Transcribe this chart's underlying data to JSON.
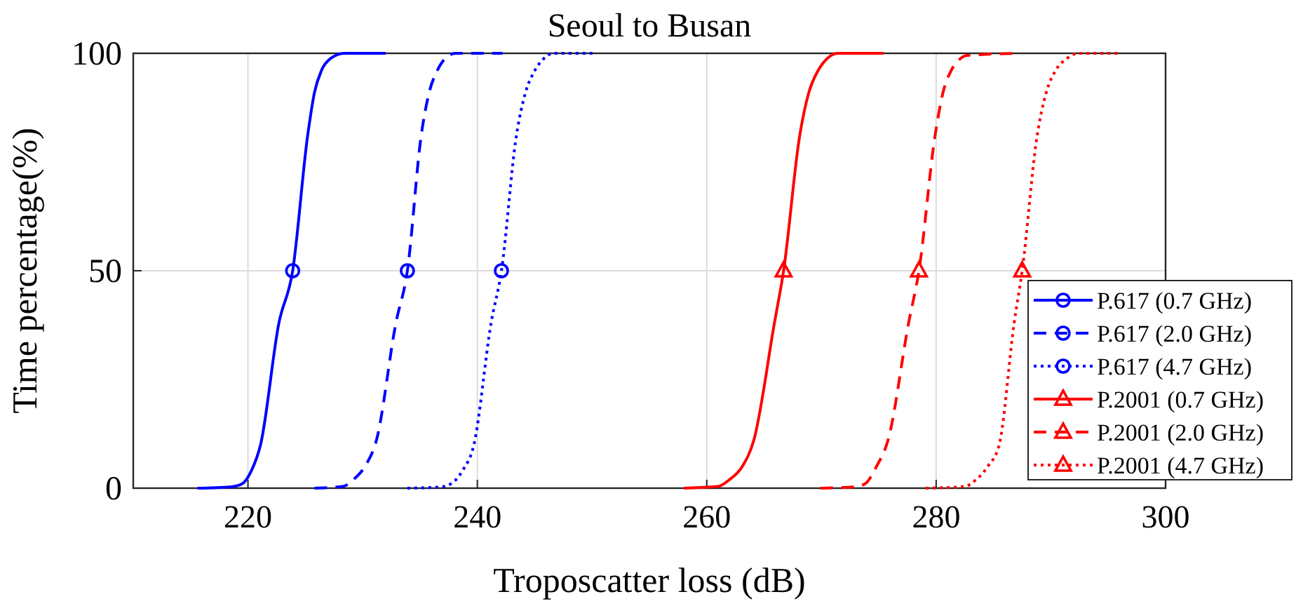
{
  "chart_data": {
    "type": "line",
    "title": "Seoul to Busan",
    "xlabel": "Troposcatter loss (dB)",
    "ylabel": "Time percentage(%)",
    "xlim": [
      210,
      300
    ],
    "xticks": [
      220,
      240,
      260,
      280,
      300
    ],
    "ylim": [
      0,
      100
    ],
    "yticks": [
      0,
      50,
      100
    ],
    "grid": true,
    "legend": "bottom right",
    "series": [
      {
        "name": "P.617 (0.7 GHz)",
        "color": "#0000ff",
        "line_style": "solid",
        "x": [
          215.6,
          218.5,
          219.5,
          220.3,
          221.1,
          222.7,
          223.9,
          225.2,
          225.8,
          226.4,
          227.2,
          228.4,
          232.0
        ],
        "values": [
          0,
          0.3,
          1,
          4,
          10,
          38,
          50,
          81,
          91,
          96,
          98.8,
          100,
          100
        ]
      },
      {
        "name": "P.617 (2.0 GHz)",
        "color": "#0000ff",
        "line_style": "dashed",
        "x": [
          225.8,
          228.3,
          229.2,
          230.2,
          231.2,
          232.9,
          233.9,
          235.1,
          235.8,
          236.5,
          237.2,
          238.1,
          242.2
        ],
        "values": [
          0,
          0.4,
          2,
          5,
          11,
          38,
          50,
          81,
          91,
          96,
          98.8,
          100,
          100
        ]
      },
      {
        "name": "P.617 (4.7 GHz)",
        "color": "#0000ff",
        "line_style": "dotted",
        "x": [
          233.9,
          236.8,
          237.7,
          238.7,
          239.7,
          241.2,
          242.1,
          243.4,
          244.2,
          245.0,
          245.8,
          246.6,
          250.3
        ],
        "values": [
          0,
          0.3,
          1,
          4,
          10,
          38,
          50,
          81,
          91,
          96,
          98.8,
          100,
          100
        ]
      },
      {
        "name": "P.2001 (0.7 GHz)",
        "color": "#ff0000",
        "line_style": "solid",
        "x": [
          258.0,
          261.0,
          262.0,
          263.1,
          264.1,
          265.9,
          266.7,
          268.1,
          268.9,
          269.7,
          270.5,
          271.4,
          275.4
        ],
        "values": [
          0,
          0.4,
          2,
          5,
          11,
          38,
          50,
          81,
          91,
          96,
          98.8,
          100,
          100
        ]
      },
      {
        "name": "P.2001 (2.0 GHz)",
        "color": "#ff0000",
        "line_style": "dashed",
        "x": [
          269.9,
          272.9,
          273.8,
          274.8,
          275.8,
          277.6,
          278.5,
          279.9,
          280.6,
          281.3,
          282.0,
          282.7,
          287.2
        ],
        "values": [
          0,
          0.3,
          1,
          5,
          11,
          38,
          50,
          81,
          91,
          96,
          98.5,
          99.5,
          100
        ]
      },
      {
        "name": "P.2001 (4.7 GHz)",
        "color": "#ff0000",
        "line_style": "dotted",
        "x": [
          279.1,
          282.5,
          283.5,
          284.5,
          285.5,
          286.8,
          287.5,
          288.8,
          289.6,
          290.4,
          291.4,
          292.4,
          296.1
        ],
        "values": [
          0,
          0.4,
          2,
          5,
          10,
          38,
          50,
          81,
          91,
          96,
          98.8,
          100,
          100
        ]
      },
      {
        "type": "scatter",
        "color": "#0000ff",
        "marker": "circle",
        "x": [
          223.9
        ],
        "values": [
          50
        ]
      },
      {
        "type": "scatter",
        "color": "#0000ff",
        "marker": "circle",
        "x": [
          233.9
        ],
        "values": [
          50
        ]
      },
      {
        "type": "scatter",
        "color": "#0000ff",
        "marker": "circle",
        "x": [
          242.1
        ],
        "values": [
          50
        ]
      },
      {
        "type": "scatter",
        "color": "#ff0000",
        "marker": "triangle",
        "x": [
          266.7
        ],
        "values": [
          50
        ]
      },
      {
        "type": "scatter",
        "color": "#ff0000",
        "marker": "triangle",
        "x": [
          278.5
        ],
        "values": [
          50
        ]
      },
      {
        "type": "scatter",
        "color": "#ff0000",
        "marker": "triangle",
        "x": [
          287.5
        ],
        "values": [
          50
        ]
      }
    ]
  }
}
